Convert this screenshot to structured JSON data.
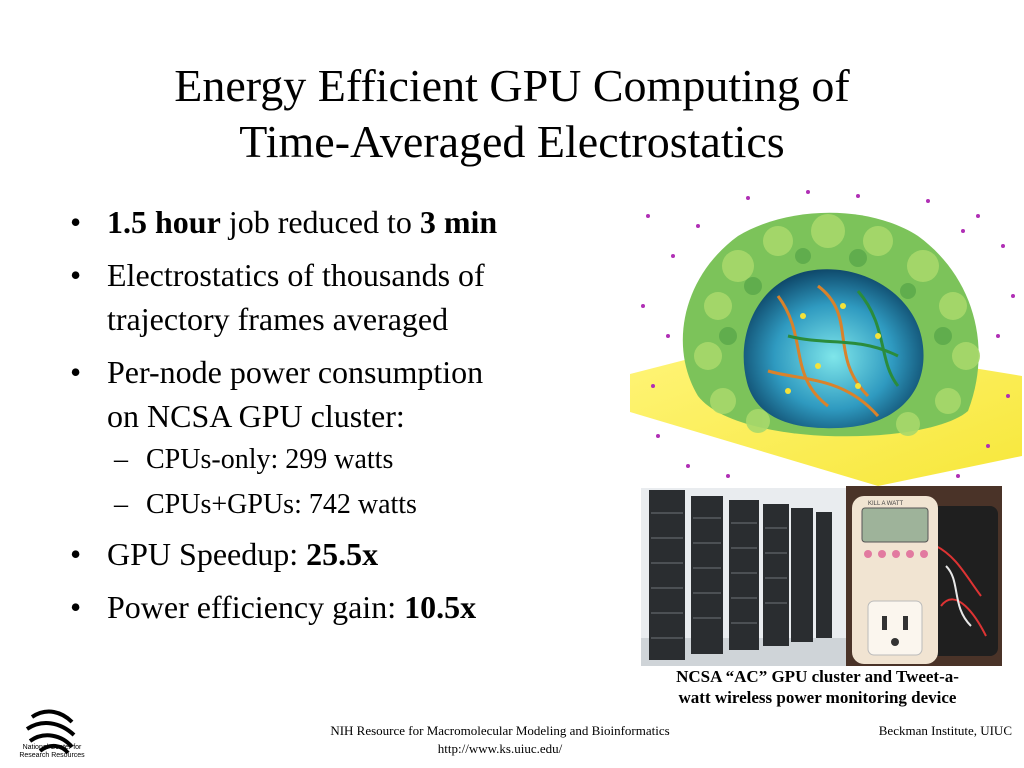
{
  "slide": {
    "title_line1": "Energy Efficient GPU Computing of",
    "title_line2": "Time-Averaged Electrostatics",
    "bullets": {
      "b1_bold1": "1.5 hour",
      "b1_text": " job reduced to ",
      "b1_bold2": "3 min",
      "b2_line1": "Electrostatics of thousands of",
      "b2_line2": "trajectory frames averaged",
      "b3_line1": "Per-node power consumption",
      "b3_line2": "on NCSA GPU cluster:",
      "sub1": "CPUs-only: 299 watts",
      "sub2": "CPUs+GPUs: 742 watts",
      "b4_text": "GPU Speedup: ",
      "b4_bold": "25.5x",
      "b5_text": "Power efficiency gain: ",
      "b5_bold": "10.5x"
    },
    "bullet_glyph": "•",
    "dash_glyph": "–",
    "caption_line1": "NCSA “AC” GPU cluster and Tweet-a-",
    "caption_line2": "watt wireless power monitoring device",
    "meter_label": "KILL A WATT"
  },
  "footer": {
    "center_line1": "NIH Resource for Macromolecular Modeling and Bioinformatics",
    "center_line2": "http://www.ks.uiuc.edu/",
    "right": "Beckman Institute, UIUC",
    "logo_line1": "National Center for",
    "logo_line2": "Research Resources"
  },
  "colors": {
    "surface_green": "#7cc35a",
    "plane_yellow": "#fff24a",
    "ion_magenta": "#b02fb5",
    "cavity_blue": "#1f6f9a"
  }
}
